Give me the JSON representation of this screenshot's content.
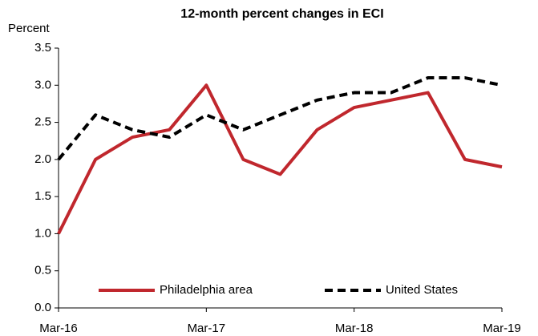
{
  "chart_data": {
    "type": "line",
    "title": "12-month percent changes in ECI",
    "y_label": "Percent",
    "categories": [
      "Mar-16",
      null,
      null,
      null,
      "Mar-17",
      null,
      null,
      null,
      "Mar-18",
      null,
      null,
      null,
      "Mar-19"
    ],
    "series": [
      {
        "name": "Philadelphia area",
        "color": "#c0272d",
        "dash": "solid",
        "values": [
          1.0,
          2.0,
          2.3,
          2.4,
          3.0,
          2.0,
          1.8,
          2.4,
          2.7,
          2.8,
          2.9,
          2.0,
          1.9
        ]
      },
      {
        "name": "United States",
        "color": "#000000",
        "dash": "dashed",
        "values": [
          2.0,
          2.6,
          2.4,
          2.3,
          2.6,
          2.4,
          2.6,
          2.8,
          2.9,
          2.9,
          3.1,
          3.1,
          3.0
        ]
      }
    ],
    "ylim": [
      0,
      3.5
    ],
    "yticks": [
      {
        "value": 0,
        "label": "0.0"
      },
      0.5,
      {
        "value": 1,
        "label": "1.0"
      },
      1.5,
      {
        "value": 2,
        "label": "2.0"
      },
      2.5,
      {
        "value": 3,
        "label": "3.0"
      },
      3.5
    ],
    "grid": false,
    "legend": "bottom"
  }
}
